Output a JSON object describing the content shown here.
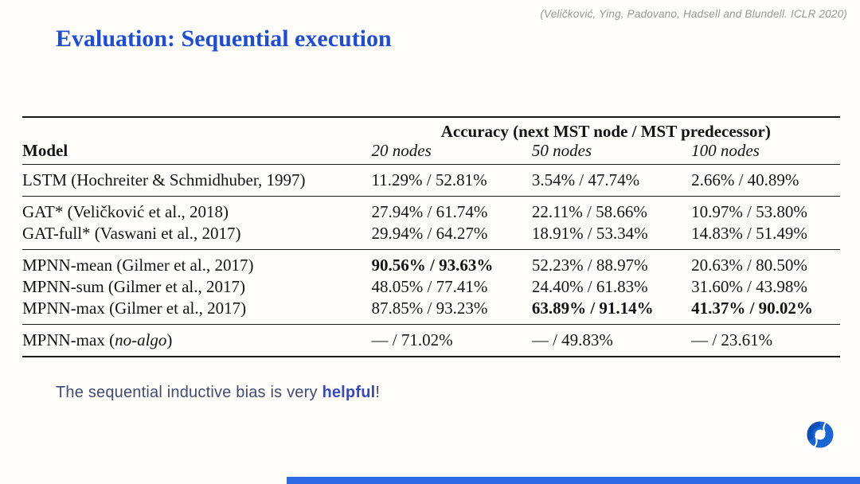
{
  "citation": "(Veličković, Ying, Padovano, Hadsell and Blundell. ICLR 2020)",
  "title": "Evaluation: Sequential execution",
  "table": {
    "col1_header": "Model",
    "span_header": "Accuracy (next MST node / MST predecessor)",
    "subheaders": [
      "20 nodes",
      "50 nodes",
      "100 nodes"
    ],
    "groups": [
      {
        "rows": [
          {
            "model": {
              "pre": "LSTM (Hochreiter & Schmidhuber, 1997)",
              "it": "",
              "post": ""
            },
            "cells": [
              {
                "t": "11.29% / 52.81%",
                "b": false
              },
              {
                "t": "3.54% / 47.74%",
                "b": false
              },
              {
                "t": "2.66% / 40.89%",
                "b": false
              }
            ]
          }
        ]
      },
      {
        "rows": [
          {
            "model": {
              "pre": "GAT* (Veličković et al., 2018)",
              "it": "",
              "post": ""
            },
            "cells": [
              {
                "t": "27.94% / 61.74%",
                "b": false
              },
              {
                "t": "22.11% / 58.66%",
                "b": false
              },
              {
                "t": "10.97% / 53.80%",
                "b": false
              }
            ]
          },
          {
            "model": {
              "pre": "GAT-full* (Vaswani et al., 2017)",
              "it": "",
              "post": ""
            },
            "cells": [
              {
                "t": "29.94% / 64.27%",
                "b": false
              },
              {
                "t": "18.91% / 53.34%",
                "b": false
              },
              {
                "t": "14.83% / 51.49%",
                "b": false
              }
            ]
          }
        ]
      },
      {
        "rows": [
          {
            "model": {
              "pre": "MPNN-mean (Gilmer et al., 2017)",
              "it": "",
              "post": ""
            },
            "cells": [
              {
                "t": "90.56% / 93.63%",
                "b": true
              },
              {
                "t": "52.23% / 88.97%",
                "b": false
              },
              {
                "t": "20.63% / 80.50%",
                "b": false
              }
            ]
          },
          {
            "model": {
              "pre": "MPNN-sum (Gilmer et al., 2017)",
              "it": "",
              "post": ""
            },
            "cells": [
              {
                "t": "48.05% / 77.41%",
                "b": false
              },
              {
                "t": "24.40% / 61.83%",
                "b": false
              },
              {
                "t": "31.60% / 43.98%",
                "b": false
              }
            ]
          },
          {
            "model": {
              "pre": "MPNN-max (Gilmer et al., 2017)",
              "it": "",
              "post": ""
            },
            "cells": [
              {
                "t": "87.85% / 93.23%",
                "b": false
              },
              {
                "t": "63.89% / 91.14%",
                "b": true
              },
              {
                "t": "41.37% / 90.02%",
                "b": true
              }
            ]
          }
        ]
      },
      {
        "rows": [
          {
            "model": {
              "pre": "MPNN-max (",
              "it": "no-algo",
              "post": ")"
            },
            "cells": [
              {
                "t": "— / 71.02%",
                "b": false
              },
              {
                "t": "— / 49.83%",
                "b": false
              },
              {
                "t": "— / 23.61%",
                "b": false
              }
            ]
          }
        ]
      }
    ]
  },
  "note": {
    "prefix": "The sequential inductive bias is very ",
    "emphasis": "helpful",
    "suffix": "!"
  },
  "colors": {
    "background": "#fffefa",
    "title-blue": "#1d4cd7",
    "citation-gray": "#97968f",
    "table-ink": "#141414",
    "rule-ink": "#1a1a1a",
    "note-ink": "#414b74",
    "note-emphasis": "#3748c4",
    "footer-bar": "#2d6ae3",
    "logo-blue": "#1866d3",
    "logo-blue-dark": "#0d4fb6"
  }
}
